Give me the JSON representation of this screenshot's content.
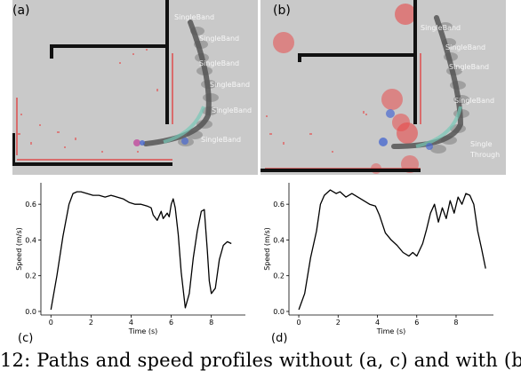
{
  "panels": {
    "a": {
      "label": "(a)",
      "band_labels": [
        "SingleBand",
        "SingleBand",
        "SingleBand",
        "SingleBand",
        "SingleBand",
        "SingleBand"
      ]
    },
    "b": {
      "label": "(b)",
      "band_labels": [
        "SingleBand",
        "SingleBand",
        "SingleBand",
        "SingleBand",
        "Single",
        "Through"
      ]
    },
    "c": {
      "label": "(c)"
    },
    "d": {
      "label": "(d)"
    }
  },
  "caption": "12: Paths and speed profiles without (a, c) and with (b",
  "colors": {
    "map_bg": "#c9c9c9",
    "wall": "#111111",
    "path": "#555555",
    "obstacle": "#e84040"
  },
  "chart_data": [
    {
      "type": "line",
      "xlabel": "Time (s)",
      "ylabel": "Speed (m/s)",
      "xlim": [
        -0.5,
        9.7
      ],
      "ylim": [
        -0.02,
        0.72
      ],
      "xticks": [
        0,
        2,
        4,
        6,
        8
      ],
      "yticks": [
        0.0,
        0.2,
        0.4,
        0.6
      ],
      "x": [
        0,
        0.3,
        0.6,
        0.9,
        1.1,
        1.3,
        1.5,
        1.8,
        2.1,
        2.4,
        2.7,
        3.0,
        3.3,
        3.6,
        3.9,
        4.2,
        4.5,
        4.8,
        5.0,
        5.1,
        5.3,
        5.5,
        5.6,
        5.8,
        5.9,
        6.0,
        6.1,
        6.2,
        6.35,
        6.5,
        6.7,
        6.9,
        7.1,
        7.3,
        7.5,
        7.65,
        7.8,
        7.9,
        8.0,
        8.2,
        8.4,
        8.6,
        8.8,
        9.0
      ],
      "y": [
        0.01,
        0.2,
        0.42,
        0.6,
        0.66,
        0.67,
        0.67,
        0.66,
        0.65,
        0.65,
        0.64,
        0.65,
        0.64,
        0.63,
        0.61,
        0.6,
        0.6,
        0.59,
        0.58,
        0.54,
        0.51,
        0.56,
        0.52,
        0.55,
        0.53,
        0.6,
        0.63,
        0.58,
        0.43,
        0.22,
        0.02,
        0.1,
        0.3,
        0.45,
        0.56,
        0.57,
        0.34,
        0.17,
        0.1,
        0.13,
        0.29,
        0.37,
        0.39,
        0.38
      ]
    },
    {
      "type": "line",
      "xlabel": "Time (s)",
      "ylabel": "Speed (m/s)",
      "xlim": [
        -0.5,
        9.9
      ],
      "ylim": [
        -0.02,
        0.72
      ],
      "xticks": [
        0,
        2,
        4,
        6,
        8
      ],
      "yticks": [
        0.0,
        0.2,
        0.4,
        0.6
      ],
      "x": [
        0,
        0.3,
        0.6,
        0.9,
        1.1,
        1.3,
        1.6,
        1.9,
        2.1,
        2.4,
        2.7,
        3.0,
        3.3,
        3.6,
        3.9,
        4.1,
        4.4,
        4.7,
        5.0,
        5.3,
        5.6,
        5.8,
        6.0,
        6.3,
        6.5,
        6.7,
        6.9,
        7.1,
        7.3,
        7.5,
        7.7,
        7.9,
        8.1,
        8.3,
        8.5,
        8.7,
        8.9,
        9.1,
        9.3,
        9.5
      ],
      "y": [
        0.01,
        0.1,
        0.3,
        0.45,
        0.6,
        0.65,
        0.68,
        0.66,
        0.67,
        0.64,
        0.66,
        0.64,
        0.62,
        0.6,
        0.59,
        0.54,
        0.44,
        0.4,
        0.37,
        0.33,
        0.31,
        0.33,
        0.31,
        0.38,
        0.46,
        0.55,
        0.6,
        0.5,
        0.58,
        0.52,
        0.62,
        0.55,
        0.64,
        0.6,
        0.66,
        0.65,
        0.6,
        0.45,
        0.35,
        0.24
      ]
    }
  ]
}
